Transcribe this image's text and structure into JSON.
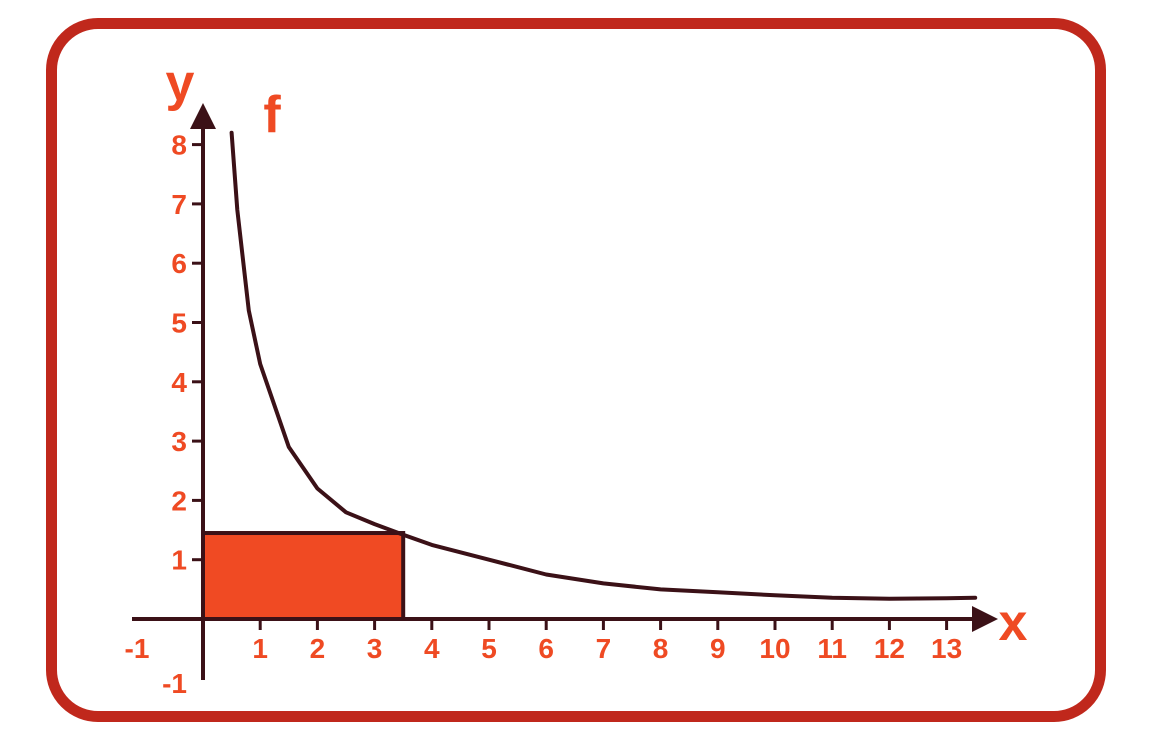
{
  "chart_data": {
    "type": "line",
    "function_label": "f",
    "xlabel": "x",
    "ylabel": "y",
    "xlim": [
      -1,
      13.5
    ],
    "ylim": [
      -1,
      8
    ],
    "x_ticks": [
      -1,
      1,
      2,
      3,
      4,
      5,
      6,
      7,
      8,
      9,
      10,
      11,
      12,
      13
    ],
    "y_ticks": [
      -1,
      1,
      2,
      3,
      4,
      5,
      6,
      7,
      8
    ],
    "series": [
      {
        "x": [
          0.5,
          0.6,
          0.8,
          1.0,
          1.5,
          2.0,
          2.5,
          3.0,
          3.5,
          4.0,
          5.0,
          6.0,
          7.0,
          8.0,
          9.0,
          10.0,
          11.0,
          12.0,
          13.0,
          13.5
        ],
        "y": [
          8.2,
          6.9,
          5.2,
          4.3,
          2.9,
          2.2,
          1.8,
          1.6,
          1.42,
          1.25,
          1.0,
          0.75,
          0.6,
          0.5,
          0.45,
          0.4,
          0.36,
          0.34,
          0.35,
          0.36
        ]
      }
    ],
    "highlight_rect": {
      "x0": 0,
      "x1": 3.5,
      "y0": 0,
      "y1": 1.45
    },
    "colors": {
      "frame": "#c0281c",
      "label": "#ef4a23",
      "rect": "#f04a23",
      "line": "#3b1117"
    },
    "grid": false
  }
}
